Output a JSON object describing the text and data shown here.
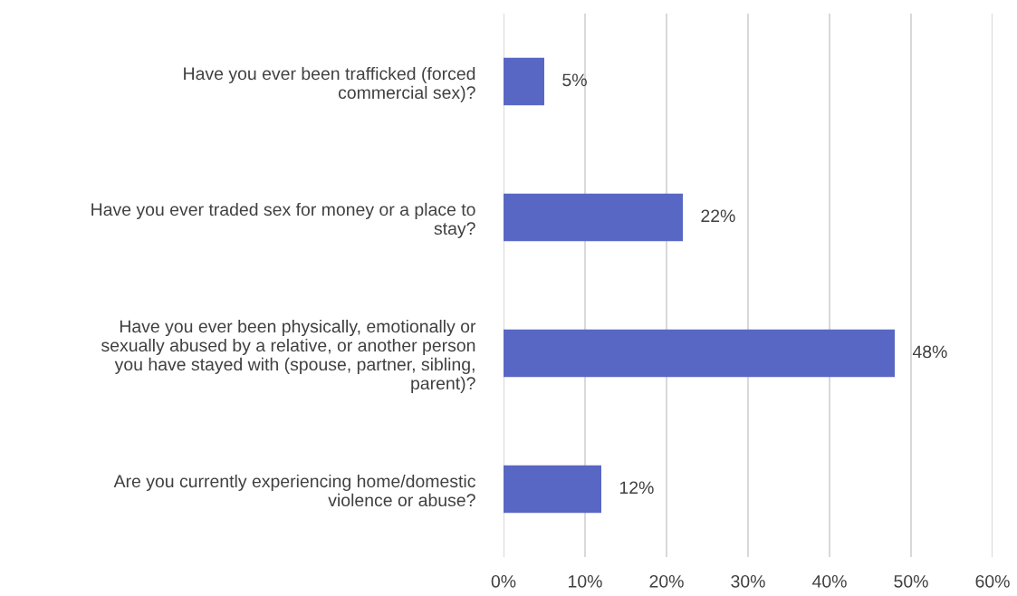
{
  "chart_data": {
    "type": "bar",
    "orientation": "horizontal",
    "categories": [
      "Have you ever been trafficked (forced\ncommercial sex)?",
      "Have you ever traded sex for money or a place to\nstay?",
      "Have you ever been physically, emotionally or\nsexually abused by a relative, or another person\nyou have stayed with (spouse, partner, sibling,\nparent)?",
      "Are you currently experiencing home/domestic\nviolence or abuse?"
    ],
    "values": [
      5,
      22,
      48,
      12
    ],
    "value_labels": [
      "5%",
      "22%",
      "48%",
      "12%"
    ],
    "color": "#5867c3",
    "xlim": [
      0,
      60
    ],
    "xticks": [
      {
        "value": 0,
        "label": "0%"
      },
      {
        "value": 10,
        "label": "10%"
      },
      {
        "value": 20,
        "label": "20%"
      },
      {
        "value": 30,
        "label": "30%"
      },
      {
        "value": 40,
        "label": "40%"
      },
      {
        "value": 50,
        "label": "50%"
      },
      {
        "value": 60,
        "label": "60%"
      }
    ],
    "grid": "x"
  }
}
